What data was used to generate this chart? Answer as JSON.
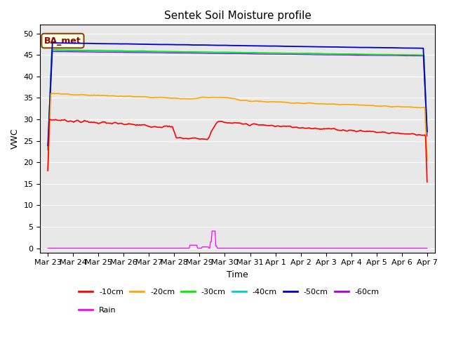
{
  "title": "Sentek Soil Moisture profile",
  "xlabel": "Time",
  "ylabel": "VWC",
  "ylim": [
    -1,
    52
  ],
  "yticks": [
    0,
    5,
    10,
    15,
    20,
    25,
    30,
    35,
    40,
    45,
    50
  ],
  "bg_color": "#e8e8e8",
  "plot_bg_color": "#e8e8e8",
  "station_label": "BA_met",
  "legend_entries": [
    "-10cm",
    "-20cm",
    "-30cm",
    "-40cm",
    "-50cm",
    "-60cm",
    "Rain"
  ],
  "line_colors": {
    "-10cm": "#ff0000",
    "-20cm": "#ffa500",
    "-30cm": "#00ee00",
    "-40cm": "#00cccc",
    "-50cm": "#0000cc",
    "-60cm": "#aa00cc",
    "Rain": "#ff00ff"
  },
  "n_points": 500,
  "xtick_labels": [
    "Mar 23",
    "Mar 24",
    "Mar 25",
    "Mar 26",
    "Mar 27",
    "Mar 28",
    "Mar 29",
    "Mar 30",
    "Mar 31",
    "Apr 1",
    "Apr 2",
    "Apr 3",
    "Apr 4",
    "Apr 5",
    "Apr 6",
    "Apr 7"
  ]
}
